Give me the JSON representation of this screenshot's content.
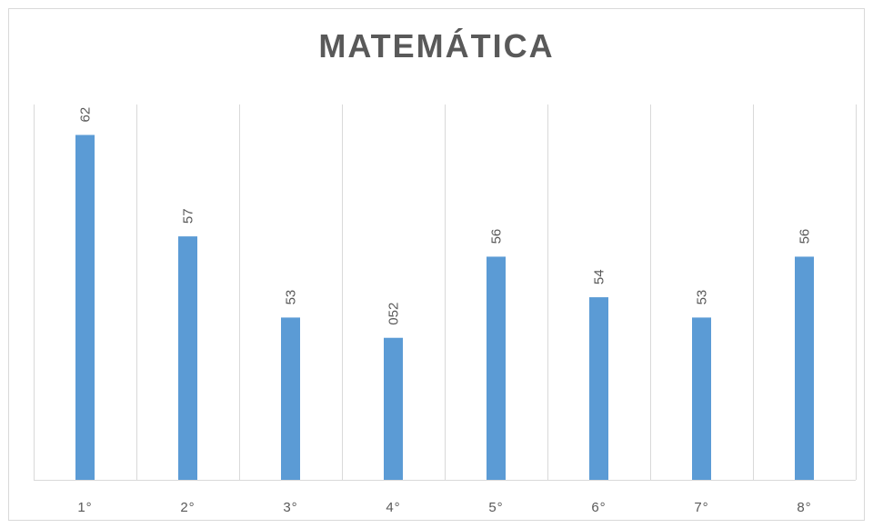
{
  "chart_data": {
    "type": "bar",
    "title": "MATEMÁTICA",
    "xlabel": "",
    "ylabel": "",
    "categories": [
      "1°",
      "2°",
      "3°",
      "4°",
      "5°",
      "6°",
      "7°",
      "8°"
    ],
    "values": [
      62,
      57,
      53,
      52,
      56,
      54,
      53,
      56
    ],
    "data_labels": [
      "62",
      "57",
      "53",
      "052",
      "56",
      "54",
      "53",
      "56"
    ],
    "ylim": [
      45,
      63.5
    ],
    "grid": "vertical",
    "legend": "none",
    "colors": {
      "bar": "#5b9bd5",
      "grid": "#d9d9d9",
      "text": "#595959"
    }
  }
}
